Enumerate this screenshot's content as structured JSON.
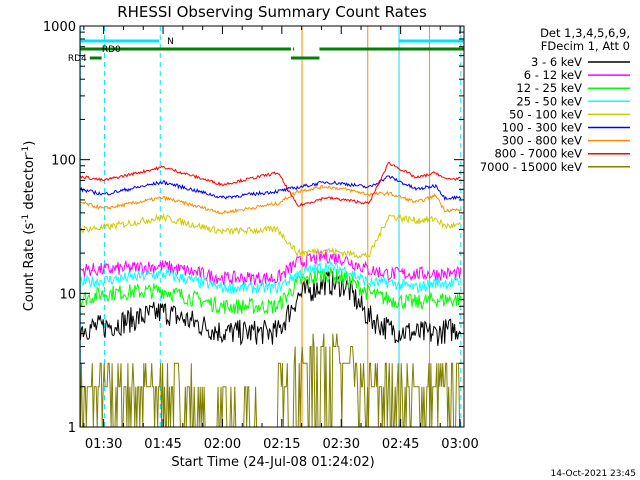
{
  "chart_data": {
    "type": "line",
    "title": "RHESSI Observing Summary Count Rates",
    "xlabel": "Start Time (24-Jul-08 01:24:02)",
    "ylabel_main": "Count Rate (s",
    "ylabel_sup1": "-1",
    "ylabel_mid": " detector",
    "ylabel_sup2": "-1",
    "ylabel_end": ")",
    "yscale": "log",
    "ylim": [
      1,
      1000
    ],
    "xlim_minutes": [
      84.03,
      181
    ],
    "x_ticks": [
      {
        "minute": 90,
        "label": "01:30"
      },
      {
        "minute": 105,
        "label": "01:45"
      },
      {
        "minute": 120,
        "label": "02:00"
      },
      {
        "minute": 135,
        "label": "02:15"
      },
      {
        "minute": 150,
        "label": "02:30"
      },
      {
        "minute": 165,
        "label": "02:45"
      },
      {
        "minute": 180,
        "label": "03:00"
      }
    ],
    "y_ticks": [
      {
        "value": 1,
        "label": "1"
      },
      {
        "value": 10,
        "label": "10"
      },
      {
        "value": 100,
        "label": "100"
      },
      {
        "value": 1000,
        "label": "1000"
      }
    ],
    "legend_header": [
      "Det 1,3,4,5,6,9,",
      "FDecim 1, Att 0"
    ],
    "legend_placement": "right",
    "series": [
      {
        "name": "3 - 6 keV",
        "color": "#000000",
        "level": 5,
        "wave": 1.45,
        "noise": 0.22,
        "x": [
          84,
          90,
          105,
          120,
          134,
          139,
          146,
          151,
          157,
          162,
          169,
          174,
          176,
          180
        ],
        "values": [
          5.5,
          5.6,
          7.3,
          5.1,
          5.1,
          9.5,
          12.0,
          11.5,
          6.6,
          5.4,
          5.0,
          5.0,
          5.2,
          5.5
        ]
      },
      {
        "name": "6 - 12 keV",
        "color": "#ff00ff",
        "level": 14,
        "wave": 1.2,
        "noise": 0.12,
        "x": [
          84,
          90,
          105,
          120,
          134,
          139,
          146,
          151,
          157,
          162,
          169,
          174,
          176,
          180
        ],
        "values": [
          15,
          15,
          16,
          13,
          13,
          17,
          19,
          18,
          15,
          14,
          14,
          14,
          14,
          14
        ]
      },
      {
        "name": "12 - 25 keV",
        "color": "#00ff00",
        "level": 9,
        "wave": 1.3,
        "noise": 0.14,
        "x": [
          84,
          90,
          105,
          120,
          134,
          139,
          146,
          151,
          157,
          162,
          169,
          174,
          176,
          180
        ],
        "values": [
          9,
          10,
          10.5,
          8,
          8,
          12,
          14,
          13,
          10,
          9,
          8.5,
          9,
          9,
          9
        ]
      },
      {
        "name": "25 - 50 keV",
        "color": "#00ffff",
        "level": 12,
        "wave": 1.25,
        "noise": 0.1,
        "x": [
          84,
          90,
          105,
          120,
          134,
          139,
          146,
          151,
          157,
          162,
          169,
          174,
          176,
          180
        ],
        "values": [
          12,
          12.5,
          14,
          11,
          11,
          14,
          16,
          15,
          12,
          12,
          11,
          12,
          12,
          12
        ]
      },
      {
        "name": "50 - 100 keV",
        "color": "#cccc00",
        "level": 32,
        "wave": 1.15,
        "noise": 0.06,
        "x": [
          84,
          90,
          105,
          120,
          134,
          139,
          146,
          151,
          157,
          162,
          169,
          174,
          176,
          180
        ],
        "values": [
          30,
          31,
          37,
          29,
          30,
          20,
          21,
          20,
          19,
          38,
          35,
          36,
          32,
          32
        ]
      },
      {
        "name": "100 - 300 keV",
        "color": "#0000ff",
        "level": 55,
        "wave": 1.1,
        "noise": 0.03,
        "x": [
          84,
          90,
          105,
          120,
          134,
          139,
          146,
          151,
          157,
          162,
          169,
          174,
          176,
          180
        ],
        "values": [
          60,
          55,
          68,
          52,
          58,
          62,
          68,
          66,
          62,
          75,
          60,
          64,
          52,
          52
        ]
      },
      {
        "name": "300 - 800 keV",
        "color": "#ff8c00",
        "level": 45,
        "wave": 1.1,
        "noise": 0.03,
        "x": [
          84,
          90,
          105,
          120,
          134,
          139,
          146,
          151,
          157,
          162,
          169,
          174,
          176,
          180
        ],
        "values": [
          48,
          43,
          52,
          40,
          47,
          58,
          63,
          60,
          55,
          56,
          48,
          54,
          42,
          42
        ]
      },
      {
        "name": "800 - 7000 keV",
        "color": "#ff0000",
        "level": 80,
        "wave": 1.1,
        "noise": 0.025,
        "x": [
          84,
          90,
          105,
          120,
          134,
          139,
          146,
          151,
          157,
          162,
          169,
          174,
          176,
          180
        ],
        "values": [
          75,
          70,
          88,
          65,
          80,
          45,
          52,
          50,
          47,
          95,
          73,
          80,
          72,
          72
        ]
      },
      {
        "name": "7000 - 15000 keV",
        "color": "#808000",
        "level": 1.5,
        "wave": 1.0,
        "noise": 0.3,
        "x": [
          84,
          90,
          105,
          120,
          134,
          139,
          146,
          151,
          157,
          162,
          169,
          174,
          176,
          180
        ],
        "values": [
          1.5,
          1.5,
          1.6,
          1.4,
          1.5,
          3.0,
          4.0,
          3.2,
          1.6,
          1.5,
          1.5,
          1.5,
          1.5,
          1.5
        ]
      }
    ],
    "flag_bars": [
      {
        "label": "N",
        "color": "#00e5ff",
        "y_row": 0,
        "segments": [
          [
            84,
            104
          ],
          [
            164.5,
            181
          ]
        ]
      },
      {
        "label": "RD0",
        "color": "#008000",
        "y_row": 1,
        "segments": [
          [
            84,
            137.3
          ],
          [
            137.8,
            138.1
          ],
          [
            144.5,
            181
          ]
        ]
      },
      {
        "label": "RD4",
        "color": "#008000",
        "y_row": 2,
        "segments": [
          [
            86.5,
            89.5
          ],
          [
            137.3,
            144.5
          ]
        ]
      }
    ],
    "vlines": [
      {
        "minute": 84.1,
        "color": "#00e5ff",
        "style": "solid"
      },
      {
        "minute": 90.2,
        "color": "#00e5ff",
        "style": "dashed"
      },
      {
        "minute": 104.3,
        "color": "#00e5ff",
        "style": "dashed"
      },
      {
        "minute": 164.6,
        "color": "#00e5ff",
        "style": "solid"
      },
      {
        "minute": 180.2,
        "color": "#00e5ff",
        "style": "dashed"
      },
      {
        "minute": 140.1,
        "color": "#ff8c00",
        "style": "solid"
      },
      {
        "minute": 156.7,
        "color": "#ff8c00",
        "style": "solid"
      },
      {
        "minute": 172.3,
        "color": "#ff8c00",
        "style": "solid"
      }
    ],
    "timestamp": "14-Oct-2021 23:45"
  }
}
